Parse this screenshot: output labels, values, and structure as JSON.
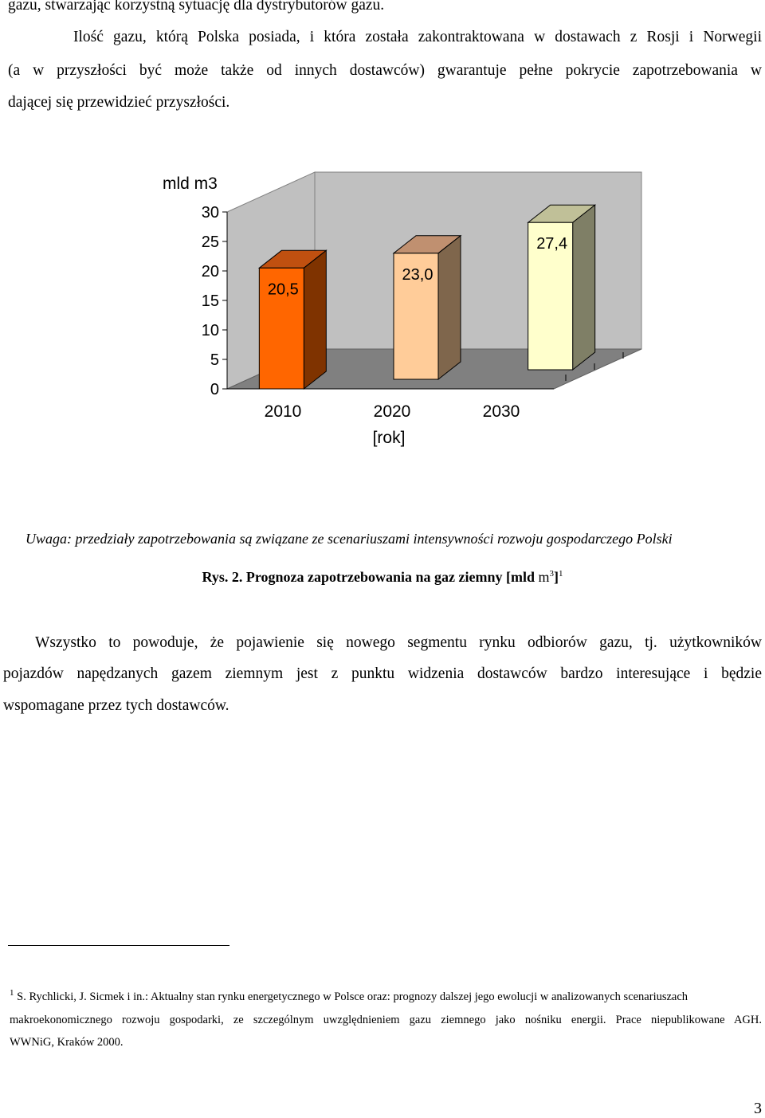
{
  "top_paragraph": {
    "line1": "gazu, stwarzając korzystną sytuację dla dystrybutorów gazu.",
    "line2": "Ilość gazu, którą Polska posiada, i która została zakontraktowana w dostawach z Rosji i Norwegii",
    "line3": "(a w przyszłości być może także od innych dostawców) gwarantuje pełne pokrycie zapotrzebowania w",
    "line4": "dającej się przewidzieć przyszłości."
  },
  "chart_data": {
    "type": "bar",
    "style": "3d",
    "categories": [
      "2010",
      "2020",
      "2030"
    ],
    "values": [
      20.5,
      23.0,
      27.4
    ],
    "data_labels": [
      "20,5",
      "23,0",
      "27,4"
    ],
    "bar_colors": [
      "#ff6600",
      "#ffcc99",
      "#ffffcc"
    ],
    "bar_side_colors": [
      "#7f3300",
      "#7f664c",
      "#7f7f66"
    ],
    "bar_top_colors": [
      "#c05010",
      "#c09070",
      "#c0c098"
    ],
    "ylabel": "mld m3",
    "xlabel": "[rok]",
    "yticks": [
      "0",
      "5",
      "10",
      "15",
      "20",
      "25",
      "30"
    ],
    "ylim": [
      0,
      30
    ],
    "grid": false
  },
  "note": "Uwaga: przedziały zapotrzebowania są związane ze scenariuszami intensywności rozwoju gospodarczego Polski",
  "caption": {
    "main": "Rys. 2. Prognoza zapotrzebowania na gaz ziemny [mld",
    "unit": "m",
    "exp": "3",
    "close": "]",
    "ref": "1"
  },
  "body_paragraph": {
    "line1": "Wszystko to powoduje, że pojawienie się nowego segmentu rynku odbiorów gazu, tj. użytkowników",
    "line2": "pojazdów napędzanych gazem ziemnym jest z punktu widzenia dostawców bardzo interesujące i będzie",
    "line3": "wspomagane przez tych dostawców."
  },
  "footnote": {
    "marker": "1",
    "line1": "S. Rychlicki, J. Sicmek i in.: Aktualny stan rynku energetycznego w Polsce oraz: prognozy dalszej jego ewolucji w analizowanych scenariuszach",
    "line2": "makroekonomicznego rozwoju gospodarki, ze szczególnym uwzględnieniem gazu ziemnego jako nośniku energii. Prace niepublikowane AGH.",
    "line3": "WWNiG, Kraków 2000."
  },
  "page_number": "3"
}
